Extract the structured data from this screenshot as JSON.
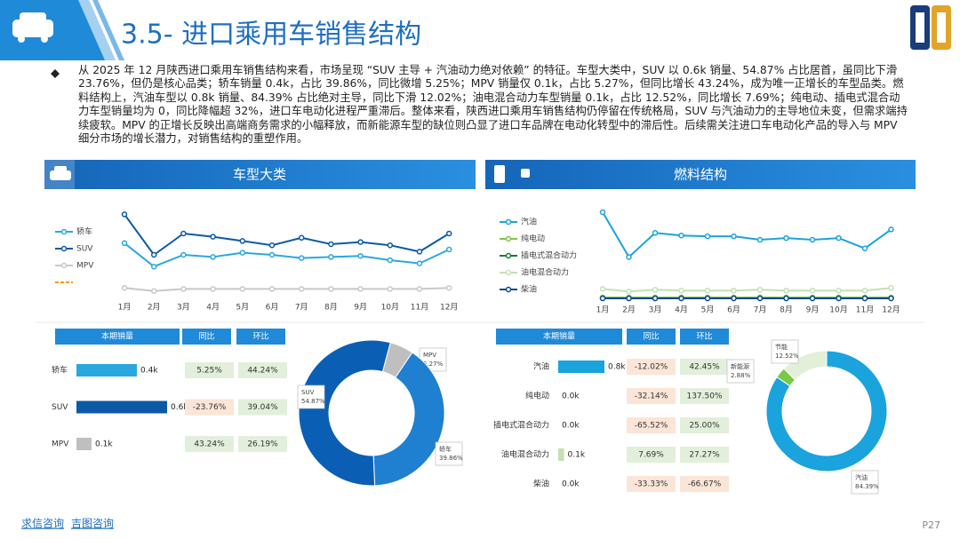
{
  "header": {
    "title": "3.5- 进口乘用车销售结构"
  },
  "summary": "从 2025 年 12 月陕西进口乘用车销售结构来看，市场呈现 “SUV 主导 + 汽油动力绝对依赖” 的特征。车型大类中，SUV 以 0.6k 销量、54.87% 占比居首，虽同比下滑 23.76%，但仍是核心品类；轿车销量 0.4k，占比 39.86%，同比微增 5.25%；MPV 销量仅 0.1k，占比 5.27%，但同比增长 43.24%，成为唯一正增长的车型品类。燃料结构上，汽油车型以 0.8k 销量、84.39% 占比绝对主导，同比下滑 12.02%；油电混合动力车型销量 0.1k，占比 12.52%，同比增长 7.69%；纯电动、插电式混合动力车型销量均为 0，同比降幅超 32%，进口车电动化进程严重滞后。整体来看，陕西进口乘用车销售结构仍停留在传统格局，SUV 与汽油动力的主导地位未变，但需求端持续疲软。MPV 的正增长反映出高端商务需求的小幅释放，而新能源车型的缺位则凸显了进口车品牌在电动化转型中的滞后性。后续需关注进口车电动化产品的导入与 MPV 细分市场的增长潜力，对销售结构的重塑作用。",
  "panels": [
    "车型大类",
    "燃料结构"
  ],
  "chart_data": [
    {
      "type": "line",
      "categories": [
        "1月",
        "2月",
        "3月",
        "4月",
        "5月",
        "6月",
        "7月",
        "8月",
        "9月",
        "10月",
        "11月",
        "12月"
      ],
      "series": [
        {
          "name": "轿车",
          "color": "#29a8e0",
          "values": [
            0.51,
            0.29,
            0.4,
            0.38,
            0.42,
            0.4,
            0.37,
            0.38,
            0.39,
            0.35,
            0.32,
            0.45
          ]
        },
        {
          "name": "SUV",
          "color": "#0c5aa6",
          "values": [
            0.78,
            0.4,
            0.6,
            0.57,
            0.53,
            0.49,
            0.56,
            0.5,
            0.52,
            0.49,
            0.43,
            0.6
          ]
        },
        {
          "name": "MPV",
          "color": "#c8c8c8",
          "values": [
            0.09,
            0.06,
            0.08,
            0.08,
            0.08,
            0.08,
            0.08,
            0.08,
            0.08,
            0.08,
            0.08,
            0.09
          ]
        }
      ]
    },
    {
      "type": "line",
      "categories": [
        "1月",
        "2月",
        "3月",
        "4月",
        "5月",
        "6月",
        "7月",
        "8月",
        "9月",
        "10月",
        "11月",
        "12月"
      ],
      "series": [
        {
          "name": "汽油",
          "color": "#1aa3dc",
          "values": [
            1.0,
            0.48,
            0.76,
            0.73,
            0.72,
            0.72,
            0.68,
            0.7,
            0.68,
            0.7,
            0.58,
            0.8
          ]
        },
        {
          "name": "纯电动",
          "color": "#7ac943",
          "values": [
            0.01,
            0.01,
            0.01,
            0.01,
            0.01,
            0.01,
            0.01,
            0.01,
            0.01,
            0.01,
            0.01,
            0.01
          ]
        },
        {
          "name": "插电式混合动力",
          "color": "#1a7a3c",
          "values": [
            0,
            0,
            0,
            0,
            0,
            0,
            0,
            0,
            0,
            0,
            0,
            0
          ]
        },
        {
          "name": "油电混合动力",
          "color": "#c5e0b4",
          "values": [
            0.11,
            0.08,
            0.1,
            0.09,
            0.09,
            0.09,
            0.1,
            0.09,
            0.09,
            0.09,
            0.09,
            0.12
          ]
        },
        {
          "name": "柴油",
          "color": "#0c4a8a",
          "values": [
            0,
            0,
            0,
            0,
            0,
            0,
            0,
            0,
            0,
            0,
            0,
            0
          ]
        }
      ]
    },
    {
      "type": "bar",
      "categories": [
        "轿车",
        "SUV",
        "MPV"
      ],
      "values": [
        0.4,
        0.6,
        0.1
      ],
      "value_labels": [
        "0.4k",
        "0.6k",
        "0.1k"
      ],
      "colors": [
        "#29a8e0",
        "#0c5aa6",
        "#bfbfbf"
      ]
    },
    {
      "type": "bar",
      "categories": [
        "汽油",
        "纯电动",
        "插电式混合动力",
        "油电混合动力",
        "柴油"
      ],
      "values": [
        0.8,
        0,
        0,
        0.1,
        0
      ],
      "value_labels": [
        "0.8k",
        "0.0k",
        "0.0k",
        "0.1k",
        "0.0k"
      ],
      "colors": [
        "#1aa3dc",
        "#7ac943",
        "#1a7a3c",
        "#c5e0b4",
        "#0c4a8a"
      ]
    },
    {
      "type": "pie",
      "categories": [
        "MPV",
        "轿车",
        "SUV"
      ],
      "values": [
        5.27,
        39.86,
        54.87
      ],
      "value_labels": [
        "5.27%",
        "39.86%",
        "54.87%"
      ],
      "colors": [
        "#bfbfbf",
        "#1f7fd0",
        "#0a5fb4"
      ]
    },
    {
      "type": "pie",
      "categories": [
        "汽油",
        "新能源",
        "节能"
      ],
      "values": [
        84.39,
        2.88,
        12.52
      ],
      "value_labels": [
        "84.39%",
        "2.88%",
        "12.52%"
      ],
      "colors": [
        "#1aa3dc",
        "#7ac943",
        "#e2efd9"
      ]
    }
  ],
  "tables": [
    {
      "columns": [
        "本期销量",
        "同比",
        "环比"
      ],
      "yoy": [
        "5.25%",
        "-23.76%",
        "43.24%"
      ],
      "mom": [
        "44.24%",
        "39.04%",
        "26.19%"
      ]
    },
    {
      "columns": [
        "本期销量",
        "同比",
        "环比"
      ],
      "yoy": [
        "-12.02%",
        "-32.14%",
        "-65.52%",
        "7.69%",
        "-33.33%"
      ],
      "mom": [
        "42.45%",
        "137.50%",
        "25.00%",
        "27.27%",
        "-66.67%"
      ]
    }
  ],
  "footer": {
    "links": [
      "求信咨询",
      "吉图咨询"
    ],
    "page": "P27"
  }
}
